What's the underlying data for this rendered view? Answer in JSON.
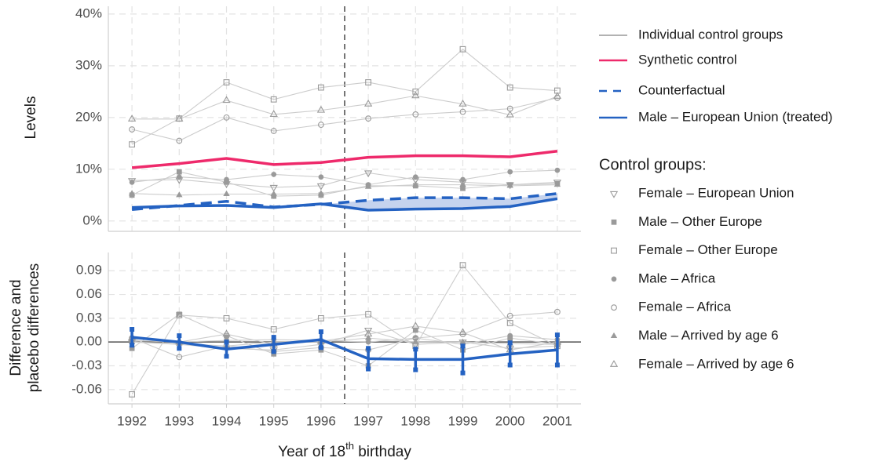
{
  "chart_data": [
    {
      "type": "line",
      "ylabel": "Levels",
      "x": [
        1992,
        1993,
        1994,
        1995,
        1996,
        1997,
        1998,
        1999,
        2000,
        2001
      ],
      "xlim": [
        1991.5,
        2001.5
      ],
      "ylim": [
        -2,
        41.5
      ],
      "yticks": [
        {
          "value": 0,
          "label": "0%"
        },
        {
          "value": 10,
          "label": "10%"
        },
        {
          "value": 20,
          "label": "20%"
        },
        {
          "value": 30,
          "label": "30%"
        },
        {
          "value": 40,
          "label": "40%"
        }
      ],
      "grid": true,
      "treatment_line": 1996.5,
      "control_groups": {
        "name": "Individual control groups",
        "title": "Control groups:",
        "color": "#cccccc",
        "marker_color": "#9a9a9a",
        "series": [
          {
            "name": "Female – European Union",
            "marker": "triangle-down-open",
            "values": [
              7.8,
              8.0,
              7.2,
              6.5,
              6.8,
              9.3,
              8.0,
              7.5,
              7.0,
              7.5
            ]
          },
          {
            "name": "Male – Other Europe",
            "marker": "square",
            "values": [
              5.0,
              9.5,
              7.5,
              4.8,
              5.0,
              6.8,
              6.8,
              6.3,
              7.0,
              7.2
            ]
          },
          {
            "name": "Female – Other Europe",
            "marker": "square-open",
            "values": [
              14.8,
              19.8,
              26.8,
              23.5,
              25.8,
              26.8,
              25.0,
              33.2,
              25.8,
              25.2
            ]
          },
          {
            "name": "Male – Africa",
            "marker": "circle",
            "values": [
              7.5,
              8.5,
              8.0,
              9.0,
              8.5,
              7.0,
              8.5,
              8.0,
              9.5,
              9.8
            ]
          },
          {
            "name": "Female – Africa",
            "marker": "circle-open",
            "values": [
              17.7,
              15.5,
              20.0,
              17.4,
              18.6,
              19.8,
              20.6,
              21.1,
              21.7,
              23.8
            ]
          },
          {
            "name": "Male – Arrived by age 6",
            "marker": "triangle",
            "values": [
              5.3,
              5.0,
              5.2,
              5.2,
              5.3,
              6.6,
              7.0,
              7.0,
              6.8,
              7.0
            ]
          },
          {
            "name": "Female – Arrived by age 6",
            "marker": "triangle-open",
            "values": [
              19.7,
              19.7,
              23.3,
              20.6,
              21.4,
              22.6,
              24.2,
              22.6,
              20.5,
              24.1
            ]
          }
        ]
      },
      "series": [
        {
          "name": "Synthetic control",
          "color": "#ee2a6b",
          "style": "solid",
          "values": [
            10.3,
            11.1,
            12.1,
            10.9,
            11.3,
            12.3,
            12.6,
            12.6,
            12.4,
            13.5
          ]
        },
        {
          "name": "Counterfactual",
          "color": "#2462c2",
          "style": "dashed",
          "values": [
            2.2,
            3.0,
            3.8,
            2.7,
            3.2,
            4.0,
            4.5,
            4.5,
            4.3,
            5.3
          ]
        },
        {
          "name": "Male – European Union (treated)",
          "color": "#2462c2",
          "style": "solid",
          "values": [
            2.6,
            2.9,
            3.0,
            2.6,
            3.3,
            2.1,
            2.3,
            2.4,
            2.8,
            4.3
          ]
        }
      ],
      "gap_fill": {
        "between": [
          1,
          2
        ],
        "from_x": 1996,
        "color": "#c5d3ee"
      }
    },
    {
      "type": "line",
      "ylabel": [
        "Difference and",
        "placebo differences"
      ],
      "xlabel": [
        "Year of 18",
        "th",
        " birthday"
      ],
      "x": [
        1992,
        1993,
        1994,
        1995,
        1996,
        1997,
        1998,
        1999,
        2000,
        2001
      ],
      "xlim": [
        1991.5,
        2001.5
      ],
      "xticks": [
        1992,
        1993,
        1994,
        1995,
        1996,
        1997,
        1998,
        1999,
        2000,
        2001
      ],
      "ylim": [
        -0.078,
        0.113
      ],
      "yticks": [
        -0.06,
        -0.03,
        {
          "value": 0,
          "label": "0.00"
        },
        0.03,
        0.06,
        0.09
      ],
      "grid": true,
      "zero_line": true,
      "treatment_line": 1996.5,
      "placebo_color": "#cccccc",
      "placebo": [
        [
          0.0,
          -0.003,
          -0.008,
          -0.01,
          -0.003,
          0.015,
          -0.003,
          0.0,
          -0.008,
          -0.005
        ],
        [
          -0.008,
          0.035,
          0.008,
          -0.015,
          -0.01,
          -0.03,
          0.015,
          -0.01,
          0.005,
          -0.003
        ],
        [
          -0.066,
          0.034,
          0.03,
          0.016,
          0.03,
          0.035,
          -0.005,
          0.097,
          0.024,
          -0.005
        ],
        [
          0.002,
          0.0,
          0.002,
          0.003,
          0.002,
          0.0,
          0.005,
          -0.003,
          0.008,
          0.003
        ],
        [
          0.005,
          -0.019,
          -0.005,
          -0.012,
          -0.007,
          -0.01,
          0.005,
          0.01,
          0.033,
          0.038
        ],
        [
          0.0,
          -0.002,
          -0.005,
          0.0,
          0.0,
          0.005,
          0.0,
          0.0,
          -0.002,
          -0.003
        ],
        [
          0.005,
          0.0,
          0.01,
          -0.003,
          0.001,
          0.01,
          0.02,
          0.012,
          -0.01,
          0.0
        ]
      ],
      "series": [
        {
          "color": "#2462c2",
          "values": [
            0.006,
            0.0,
            -0.009,
            -0.003,
            0.003,
            -0.021,
            -0.022,
            -0.022,
            -0.015,
            -0.01
          ],
          "errors": [
            0.01,
            0.008,
            0.009,
            0.009,
            0.01,
            0.013,
            0.013,
            0.017,
            0.014,
            0.019
          ]
        }
      ]
    }
  ]
}
